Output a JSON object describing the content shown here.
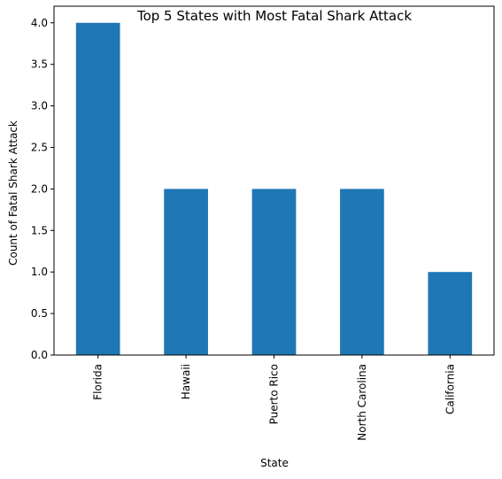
{
  "chart_data": {
    "type": "bar",
    "title": "Top 5 States with Most Fatal Shark Attack",
    "xlabel": "State",
    "ylabel": "Count of Fatal Shark Attack",
    "categories": [
      "Florida",
      "Hawaii",
      "Puerto Rico",
      "North Carolina",
      "California"
    ],
    "values": [
      4.0,
      2.0,
      2.0,
      2.0,
      1.0
    ],
    "ylim": [
      0,
      4.2
    ],
    "yticks": [
      "0.0",
      "0.5",
      "1.0",
      "1.5",
      "2.0",
      "2.5",
      "3.0",
      "3.5",
      "4.0"
    ],
    "grid": false,
    "legend": "none",
    "bar_color": "#1f77b4"
  }
}
